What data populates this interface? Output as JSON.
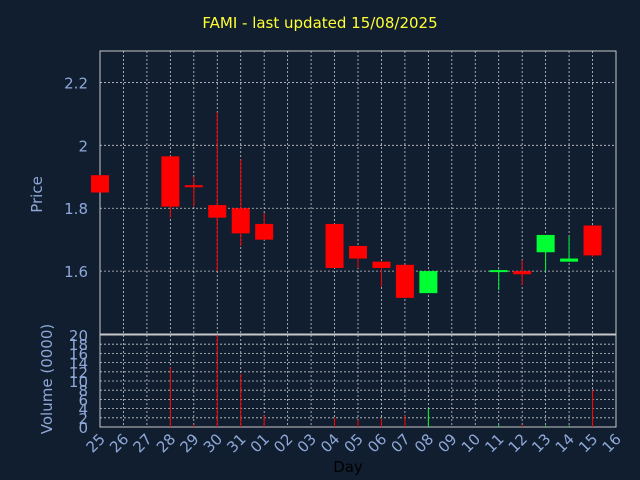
{
  "title": "FAMI - last updated 15/08/2025",
  "colors": {
    "background": "#111e30",
    "axis_text": "#8fa8d8",
    "grid": "#c8c8c8",
    "up": "#00ff33",
    "down": "#ff0000",
    "title": "#ffff33"
  },
  "chart_data": [
    {
      "type": "candlestick",
      "title": "FAMI - last updated 15/08/2025",
      "ylabel": "Price",
      "xlabel": "",
      "ylim": [
        1.4,
        2.3
      ],
      "yticks": [
        "1.6",
        "1.8",
        "2",
        "2.2"
      ],
      "grid": true,
      "categories": [
        "25",
        "26",
        "27",
        "28",
        "29",
        "30",
        "31",
        "01",
        "02",
        "03",
        "04",
        "05",
        "06",
        "07",
        "08",
        "09",
        "10",
        "11",
        "12",
        "13",
        "14",
        "15",
        "16"
      ],
      "series": [
        {
          "values": [
            {
              "x": "25",
              "open": 1.905,
              "high": 1.905,
              "low": 1.85,
              "close": 1.85
            },
            {
              "x": "28",
              "open": 1.965,
              "high": 1.965,
              "low": 1.77,
              "close": 1.805
            },
            {
              "x": "29",
              "open": 1.87,
              "high": 1.9,
              "low": 1.805,
              "close": 1.865
            },
            {
              "x": "30",
              "open": 1.81,
              "high": 2.105,
              "low": 1.6,
              "close": 1.77
            },
            {
              "x": "31",
              "open": 1.8,
              "high": 1.955,
              "low": 1.68,
              "close": 1.72
            },
            {
              "x": "01",
              "open": 1.75,
              "high": 1.785,
              "low": 1.7,
              "close": 1.7
            },
            {
              "x": "04",
              "open": 1.75,
              "high": 1.75,
              "low": 1.61,
              "close": 1.61
            },
            {
              "x": "05",
              "open": 1.68,
              "high": 1.68,
              "low": 1.61,
              "close": 1.64
            },
            {
              "x": "06",
              "open": 1.63,
              "high": 1.63,
              "low": 1.55,
              "close": 1.61
            },
            {
              "x": "07",
              "open": 1.62,
              "high": 1.62,
              "low": 1.515,
              "close": 1.515
            },
            {
              "x": "08",
              "open": 1.53,
              "high": 1.6,
              "low": 1.53,
              "close": 1.6
            },
            {
              "x": "11",
              "open": 1.595,
              "high": 1.605,
              "low": 1.54,
              "close": 1.6
            },
            {
              "x": "12",
              "open": 1.6,
              "high": 1.635,
              "low": 1.555,
              "close": 1.59
            },
            {
              "x": "13",
              "open": 1.66,
              "high": 1.715,
              "low": 1.6,
              "close": 1.715
            },
            {
              "x": "14",
              "open": 1.63,
              "high": 1.71,
              "low": 1.63,
              "close": 1.64
            },
            {
              "x": "15",
              "open": 1.745,
              "high": 1.745,
              "low": 1.645,
              "close": 1.65
            }
          ]
        }
      ]
    },
    {
      "type": "bar",
      "xlabel": "Day",
      "ylabel": "Volume (0000)",
      "ylim": [
        0,
        20
      ],
      "yticks": [
        "0",
        "2",
        "4",
        "6",
        "8",
        "10",
        "12",
        "14",
        "16",
        "18",
        "20"
      ],
      "grid": true,
      "categories": [
        "25",
        "26",
        "27",
        "28",
        "29",
        "30",
        "31",
        "01",
        "02",
        "03",
        "04",
        "05",
        "06",
        "07",
        "08",
        "09",
        "10",
        "11",
        "12",
        "13",
        "14",
        "15",
        "16"
      ],
      "values": [
        0,
        0,
        0,
        13,
        0.5,
        20,
        11.5,
        2.5,
        0,
        0,
        2,
        1.5,
        1.8,
        2.5,
        4,
        0,
        0,
        0.4,
        0.5,
        0.3,
        0.3,
        8,
        0
      ],
      "direction": [
        "down",
        "none",
        "none",
        "down",
        "down",
        "down",
        "down",
        "down",
        "none",
        "none",
        "down",
        "down",
        "down",
        "down",
        "up",
        "none",
        "none",
        "up",
        "down",
        "up",
        "up",
        "down",
        "none"
      ]
    }
  ]
}
